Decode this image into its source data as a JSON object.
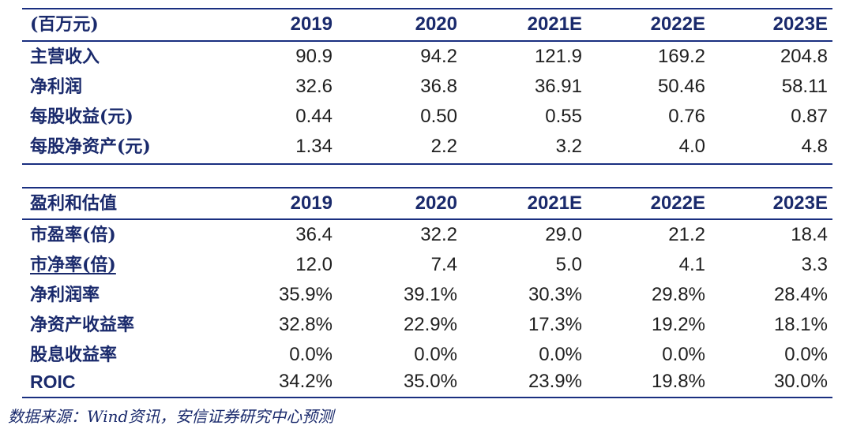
{
  "colors": {
    "label_text": "#1a2a6c",
    "rule_line": "#1a2f80",
    "number_text": "#1f1f1f"
  },
  "financials": {
    "header": {
      "label": "(百万元)",
      "years": [
        "2019",
        "2020",
        "2021E",
        "2022E",
        "2023E"
      ]
    },
    "rows": [
      {
        "label": "主营收入",
        "values": [
          "90.9",
          "94.2",
          "121.9",
          "169.2",
          "204.8"
        ]
      },
      {
        "label": "净利润",
        "values": [
          "32.6",
          "36.8",
          "36.91",
          "50.46",
          "58.11"
        ]
      },
      {
        "label": "每股收益(元)",
        "values": [
          "0.44",
          "0.50",
          "0.55",
          "0.76",
          "0.87"
        ]
      },
      {
        "label": "每股净资产(元)",
        "values": [
          "1.34",
          "2.2",
          "3.2",
          "4.0",
          "4.8"
        ]
      }
    ]
  },
  "valuation": {
    "header": {
      "label": "盈利和估值",
      "years": [
        "2019",
        "2020",
        "2021E",
        "2022E",
        "2023E"
      ]
    },
    "rows": [
      {
        "label": "市盈率(倍)",
        "values": [
          "36.4",
          "32.2",
          "29.0",
          "21.2",
          "18.4"
        ]
      },
      {
        "label": "市净率(倍)",
        "values": [
          "12.0",
          "7.4",
          "5.0",
          "4.1",
          "3.3"
        ]
      },
      {
        "label": "净利润率",
        "values": [
          "35.9%",
          "39.1%",
          "30.3%",
          "29.8%",
          "28.4%"
        ]
      },
      {
        "label": "净资产收益率",
        "values": [
          "32.8%",
          "22.9%",
          "17.3%",
          "19.2%",
          "18.1%"
        ]
      },
      {
        "label": "股息收益率",
        "values": [
          "0.0%",
          "0.0%",
          "0.0%",
          "0.0%",
          "0.0%"
        ]
      },
      {
        "label": "ROIC",
        "values": [
          "34.2%",
          "35.0%",
          "23.9%",
          "19.8%",
          "30.0%"
        ]
      }
    ]
  },
  "footnote": "数据来源：Wind资讯，安信证券研究中心预测"
}
